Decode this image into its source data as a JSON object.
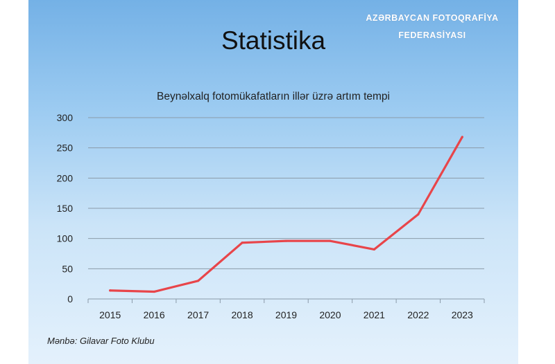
{
  "slide": {
    "watermark_line1": "AZƏRBAYCAN FOTOQRAFİYA",
    "watermark_line2": "FEDERASİYASI",
    "title": "Statistika",
    "source": "Mənbə: Gilavar Foto Klubu"
  },
  "colors": {
    "line": "#e8454a",
    "grid": "#8a9aa8",
    "background_top": "#74b1e6",
    "background_bottom": "#e4f1fc"
  },
  "chart_data": {
    "type": "line",
    "title": "Beynəlxalq fotomükafatların illər üzrə artım tempi",
    "xlabel": "",
    "ylabel": "",
    "categories": [
      "2015",
      "2016",
      "2017",
      "2018",
      "2019",
      "2020",
      "2021",
      "2022",
      "2023"
    ],
    "series": [
      {
        "values": [
          14,
          12,
          30,
          93,
          96,
          96,
          82,
          140,
          268
        ]
      }
    ],
    "ylim": [
      0,
      300
    ],
    "yticks": [
      0,
      50,
      100,
      150,
      200,
      250,
      300
    ],
    "grid": true,
    "legend": "none"
  }
}
